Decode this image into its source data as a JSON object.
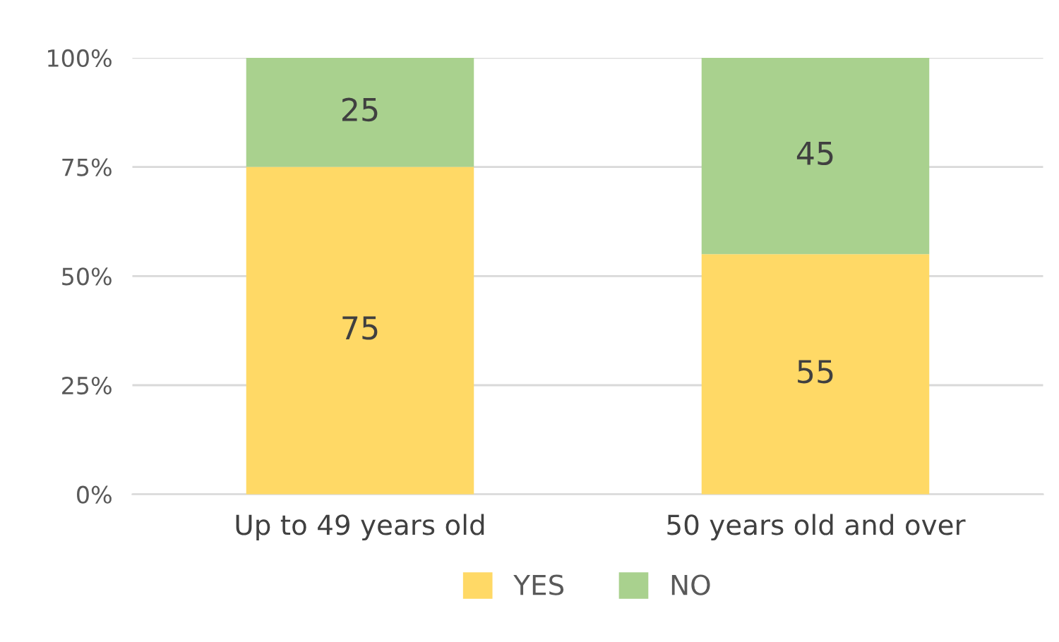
{
  "chart_data": {
    "type": "bar",
    "stacked": true,
    "categories": [
      "Up to 49 years old",
      "50 years old and over"
    ],
    "series": [
      {
        "name": "YES",
        "color": "#ffd966",
        "values": [
          75,
          55
        ]
      },
      {
        "name": "NO",
        "color": "#a9d18e",
        "values": [
          25,
          45
        ]
      }
    ],
    "ylim": [
      0,
      100
    ],
    "yticks": [
      {
        "value": 0,
        "label": "0%"
      },
      {
        "value": 25,
        "label": "25%"
      },
      {
        "value": 50,
        "label": "50%"
      },
      {
        "value": 75,
        "label": "75%"
      },
      {
        "value": 100,
        "label": "100%"
      }
    ],
    "grid": "y",
    "legend": "bottom",
    "data_labels": true
  }
}
